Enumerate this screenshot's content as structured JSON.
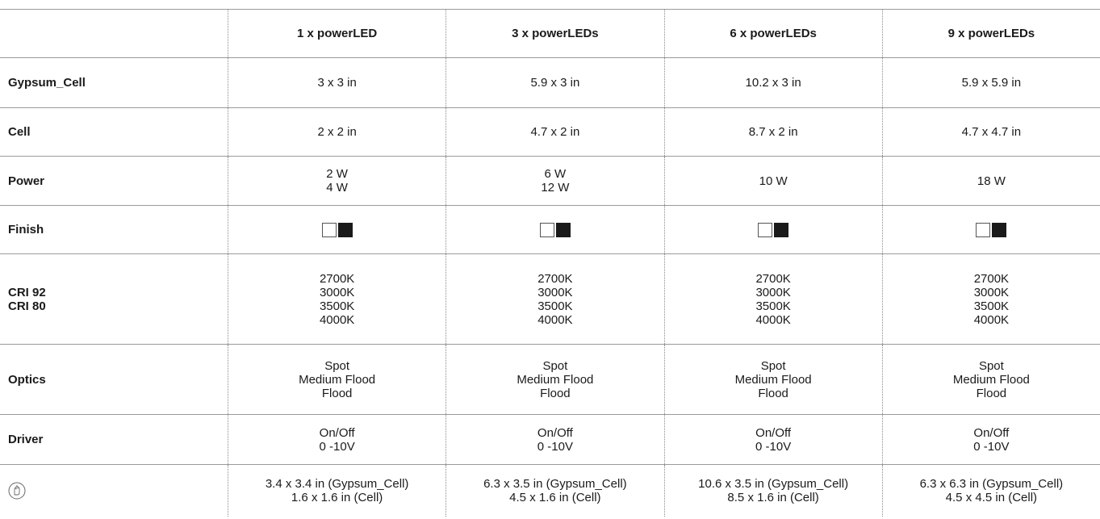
{
  "columns": [
    "1 x powerLED",
    "3 x powerLEDs",
    "6 x powerLEDs",
    "9 x powerLEDs"
  ],
  "rows": {
    "gypsum_cell": {
      "label": "Gypsum_Cell",
      "values": [
        "3 x 3 in",
        "5.9 x 3 in",
        "10.2 x 3 in",
        "5.9 x 5.9 in"
      ]
    },
    "cell": {
      "label": "Cell",
      "values": [
        "2 x 2 in",
        "4.7 x 2 in",
        "8.7 x 2 in",
        "4.7 x 4.7 in"
      ]
    },
    "power": {
      "label": "Power",
      "values": [
        [
          "2 W",
          "4 W"
        ],
        [
          "6 W",
          "12 W"
        ],
        [
          "10 W"
        ],
        [
          "18 W"
        ]
      ]
    },
    "finish": {
      "label": "Finish",
      "swatch_colors": [
        "#ffffff",
        "#1a1a1a"
      ]
    },
    "cri": {
      "label_lines": [
        "CRI 92",
        "CRI 80"
      ],
      "values": [
        "2700K",
        "3000K",
        "3500K",
        "4000K"
      ]
    },
    "optics": {
      "label": "Optics",
      "values": [
        "Spot",
        "Medium Flood",
        "Flood"
      ]
    },
    "driver": {
      "label": "Driver",
      "values": [
        "On/Off",
        "0 -10V"
      ]
    },
    "cutout": {
      "icon": "cutout-hand-icon",
      "values": [
        [
          "3.4 x 3.4 in (Gypsum_Cell)",
          "1.6 x 1.6 in (Cell)"
        ],
        [
          "6.3 x 3.5 in (Gypsum_Cell)",
          "4.5 x 1.6 in (Cell)"
        ],
        [
          "10.6 x 3.5 in (Gypsum_Cell)",
          "8.5 x 1.6 in (Cell)"
        ],
        [
          "6.3 x 6.3 in (Gypsum_Cell)",
          "4.5 x 4.5 in (Cell)"
        ]
      ]
    }
  }
}
